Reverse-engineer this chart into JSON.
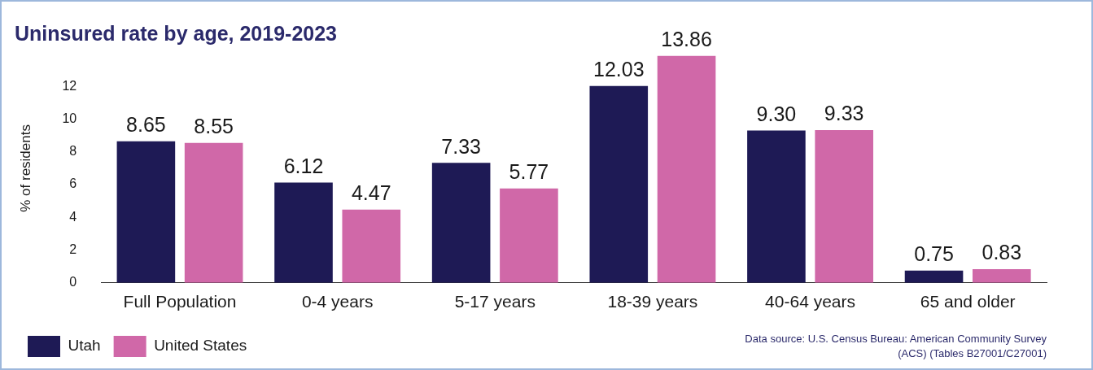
{
  "chart_data": {
    "type": "bar",
    "title": "Uninsured rate by age, 2019-2023",
    "ylabel": "% of residents",
    "categories": [
      "Full Population",
      "0-4 years",
      "5-17 years",
      "18-39 years",
      "40-64 years",
      "65 and older"
    ],
    "series": [
      {
        "name": "Utah",
        "color": "#1e1a55",
        "values": [
          8.65,
          6.12,
          7.33,
          12.03,
          9.3,
          0.75
        ],
        "value_labels": [
          "8.65",
          "6.12",
          "7.33",
          "12.03",
          "9.30",
          "0.75"
        ]
      },
      {
        "name": "United States",
        "color": "#d068a8",
        "values": [
          8.55,
          4.47,
          5.77,
          13.86,
          9.33,
          0.83
        ],
        "value_labels": [
          "8.55",
          "4.47",
          "5.77",
          "13.86",
          "9.33",
          "0.83"
        ]
      }
    ],
    "ylim": [
      0,
      14
    ],
    "yticks": [
      0,
      2,
      4,
      6,
      8,
      10,
      12
    ],
    "grid": false,
    "legend": "bottom left",
    "annotations": [
      "Data source: U.S. Census Bureau: American Community Survey (ACS) (Tables B27001/C27001)"
    ]
  }
}
